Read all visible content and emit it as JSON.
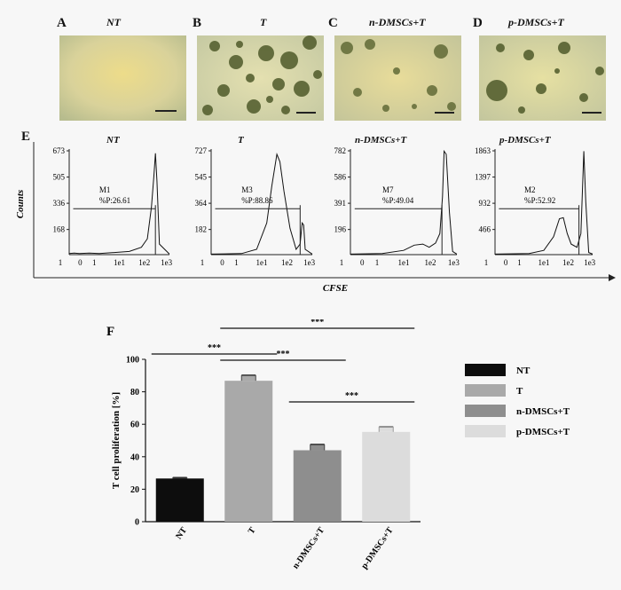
{
  "photo_panels": [
    {
      "letter": "A",
      "title": "NT"
    },
    {
      "letter": "B",
      "title": "T"
    },
    {
      "letter": "C",
      "title": "n-DMSCs+T"
    },
    {
      "letter": "D",
      "title": "p-DMSCs+T"
    }
  ],
  "cytometry": {
    "panel_letter": "E",
    "y_axis_label": "Counts",
    "x_axis_label": "CFSE",
    "x_ticks": [
      "1",
      "0",
      "1",
      "1e1",
      "1e2",
      "1e3"
    ],
    "plots": [
      {
        "title": "NT",
        "yticks": [
          "673",
          "505",
          "336",
          "168"
        ],
        "gate": "M1",
        "pct": "%P:26.61"
      },
      {
        "title": "T",
        "yticks": [
          "727",
          "545",
          "364",
          "182"
        ],
        "gate": "M3",
        "pct": "%P:88.86"
      },
      {
        "title": "n-DMSCs+T",
        "yticks": [
          "782",
          "586",
          "391",
          "196"
        ],
        "gate": "M7",
        "pct": "%P:49.04"
      },
      {
        "title": "p-DMSCs+T",
        "yticks": [
          "1863",
          "1397",
          "932",
          "466"
        ],
        "gate": "M2",
        "pct": "%P:52.92"
      }
    ]
  },
  "chart_data": {
    "type": "bar",
    "panel_letter": "F",
    "categories": [
      "NT",
      "T",
      "n-DMSCs+T",
      "p-DMSCs+T"
    ],
    "values": [
      26.6,
      86.8,
      44.0,
      55.3
    ],
    "errors": [
      0.6,
      3.4,
      3.6,
      3.2
    ],
    "colors": [
      "#0d0d0d",
      "#a9a9a9",
      "#8e8e8e",
      "#dcdcdc"
    ],
    "ylabel": "T cell proliferation [%]",
    "ylim": [
      0,
      100
    ],
    "yticks": [
      "0",
      "20",
      "40",
      "60",
      "80",
      "100"
    ],
    "legend": [
      "NT",
      "T",
      "n-DMSCs+T",
      "p-DMSCs+T"
    ],
    "legend_position": "right",
    "significance": [
      {
        "from": 0,
        "to": 1,
        "label": "***"
      },
      {
        "from": 1,
        "to": 2,
        "label": "***"
      },
      {
        "from": 1,
        "to": 3,
        "label": "***"
      },
      {
        "from": 2,
        "to": 3,
        "label": "***"
      }
    ]
  }
}
